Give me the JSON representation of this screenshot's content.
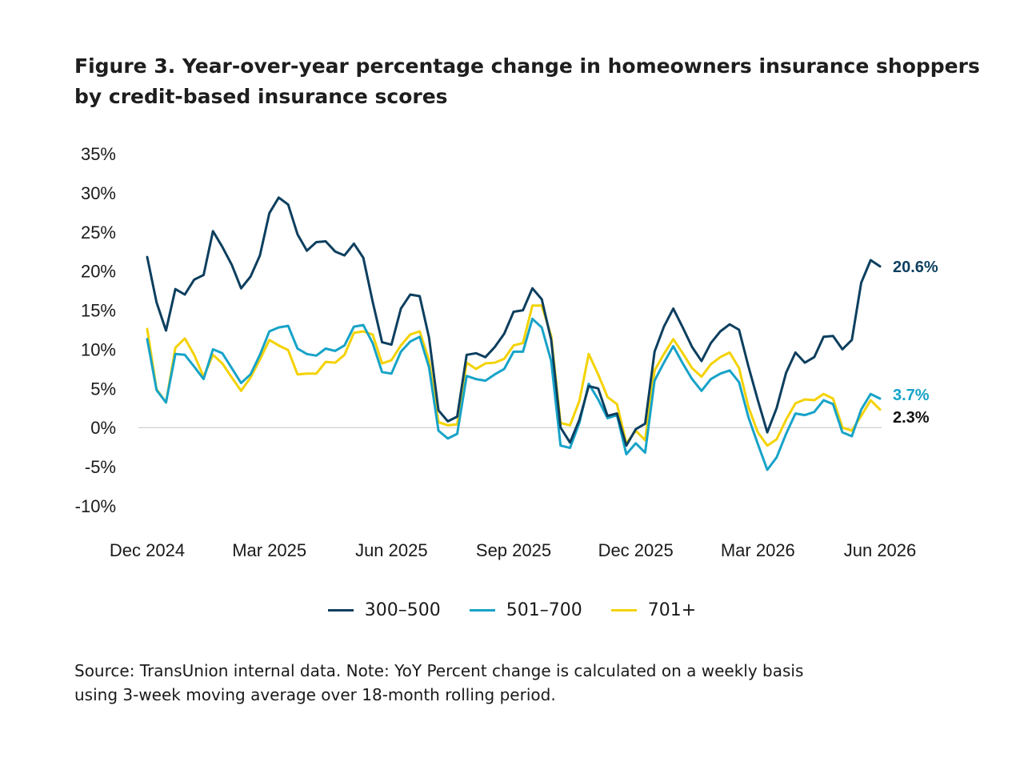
{
  "title": {
    "line1": "Figure 3. Year-over-year percentage change in homeowners insurance shoppers",
    "line2": "by credit-based insurance scores"
  },
  "source": {
    "line1": "Source: TransUnion internal data. Note: YoY Percent change is calculated on a weekly basis",
    "line2": "using 3-week moving average over 18-month rolling period."
  },
  "chart_data": {
    "type": "line",
    "title": "Figure 3. Year-over-year percentage change in homeowners insurance shoppers by credit-based insurance scores",
    "xlabel": "",
    "ylabel": "",
    "ylim": [
      -10,
      35
    ],
    "y_ticks": [
      35,
      30,
      25,
      20,
      15,
      10,
      5,
      0,
      -5,
      -10
    ],
    "y_tick_labels": [
      "35%",
      "30%",
      "25%",
      "20%",
      "15%",
      "10%",
      "5%",
      "0%",
      "-5%",
      "-10%"
    ],
    "x_ticks": [
      "Dec 2024",
      "Mar 2025",
      "Jun 2025",
      "Sep 2025",
      "Dec 2025",
      "Mar 2026",
      "Jun 2026"
    ],
    "x_range": [
      "2024-12-02",
      "2026-06-30"
    ],
    "x_interval": "weekly",
    "gridlines": "zero-line only",
    "legend_position": "bottom",
    "series": [
      {
        "name": "300–500",
        "color": "#0d3f5f",
        "end_label": "20.6%",
        "values": [
          21.8,
          16.0,
          12.4,
          17.7,
          17.0,
          18.9,
          19.5,
          25.1,
          23.1,
          20.8,
          17.8,
          19.3,
          22.0,
          27.4,
          29.4,
          28.5,
          24.7,
          22.6,
          23.7,
          23.8,
          22.5,
          22.0,
          23.5,
          21.7,
          16.1,
          10.9,
          10.6,
          15.2,
          17.0,
          16.8,
          11.5,
          2.2,
          0.8,
          1.4,
          9.3,
          9.5,
          9.0,
          10.3,
          12.0,
          14.8,
          15.0,
          17.8,
          16.4,
          11.2,
          0.0,
          -1.9,
          1.0,
          5.3,
          5.0,
          1.5,
          1.8,
          -2.3,
          -0.2,
          0.5,
          9.7,
          12.9,
          15.2,
          12.8,
          10.3,
          8.5,
          10.8,
          12.3,
          13.2,
          12.5,
          7.8,
          3.5,
          -0.6,
          2.5,
          7.0,
          9.6,
          8.3,
          9.0,
          11.6,
          11.7,
          10.0,
          11.2,
          18.5,
          21.4,
          20.6
        ]
      },
      {
        "name": "501–700",
        "color": "#17a3c8",
        "end_label": "3.7%",
        "values": [
          11.3,
          4.8,
          3.2,
          9.4,
          9.3,
          7.8,
          6.2,
          10.0,
          9.5,
          7.6,
          5.7,
          6.8,
          9.3,
          12.3,
          12.8,
          13.0,
          10.1,
          9.4,
          9.2,
          10.1,
          9.8,
          10.5,
          12.9,
          13.1,
          10.8,
          7.1,
          6.9,
          9.7,
          11.0,
          11.6,
          7.7,
          -0.4,
          -1.4,
          -0.8,
          6.6,
          6.2,
          6.0,
          6.8,
          7.5,
          9.7,
          9.7,
          13.9,
          12.8,
          8.5,
          -2.3,
          -2.6,
          0.6,
          5.6,
          3.6,
          1.2,
          1.6,
          -3.4,
          -2.0,
          -3.2,
          6.0,
          8.3,
          10.4,
          8.2,
          6.2,
          4.7,
          6.2,
          6.9,
          7.3,
          5.8,
          1.3,
          -2.1,
          -5.4,
          -3.8,
          -0.8,
          1.8,
          1.6,
          2.0,
          3.5,
          3.0,
          -0.6,
          -1.1,
          2.3,
          4.3,
          3.7
        ]
      },
      {
        "name": "701+",
        "color": "#f4d200",
        "end_label": "2.3%",
        "values": [
          12.6,
          4.9,
          3.2,
          10.2,
          11.4,
          9.3,
          6.5,
          9.3,
          8.2,
          6.4,
          4.7,
          6.4,
          8.7,
          11.2,
          10.5,
          9.9,
          6.8,
          6.9,
          6.9,
          8.4,
          8.3,
          9.3,
          12.1,
          12.3,
          11.9,
          8.2,
          8.6,
          10.5,
          11.9,
          12.3,
          8.6,
          0.7,
          0.3,
          0.4,
          8.3,
          7.5,
          8.2,
          8.3,
          8.8,
          10.5,
          10.8,
          15.6,
          15.6,
          11.7,
          0.6,
          0.3,
          3.4,
          9.4,
          6.8,
          3.9,
          3.0,
          -2.0,
          -0.4,
          -1.6,
          7.3,
          9.4,
          11.3,
          9.5,
          7.6,
          6.5,
          8.1,
          9.0,
          9.6,
          7.6,
          2.6,
          -0.6,
          -2.3,
          -1.5,
          1.0,
          3.1,
          3.6,
          3.5,
          4.3,
          3.7,
          0.0,
          -0.4,
          1.5,
          3.5,
          2.3
        ]
      }
    ]
  }
}
